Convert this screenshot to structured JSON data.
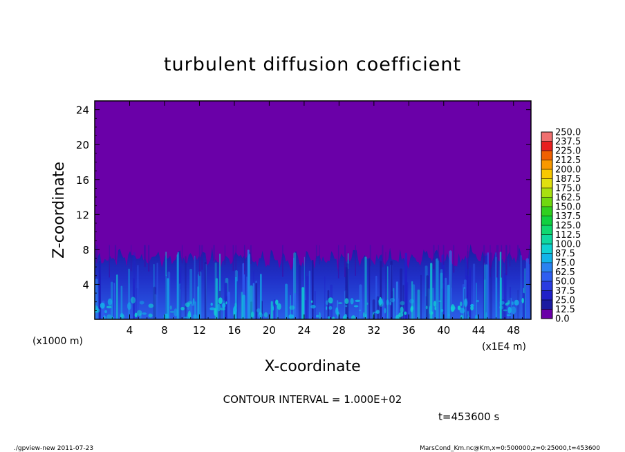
{
  "chart_data": {
    "type": "heatmap",
    "title": "turbulent diffusion coefficient",
    "xlabel": "X-coordinate",
    "ylabel": "Z-coordinate",
    "x_unit": "(x1E4 m)",
    "y_unit": "(x1000 m)",
    "xlim": [
      0,
      50
    ],
    "ylim": [
      0,
      25
    ],
    "x_ticks": [
      4,
      8,
      12,
      16,
      20,
      24,
      28,
      32,
      36,
      40,
      44,
      48
    ],
    "y_ticks": [
      4,
      8,
      12,
      16,
      20,
      24
    ],
    "colorbar": {
      "levels": [
        "0.0",
        "12.5",
        "25.0",
        "37.5",
        "50.0",
        "62.5",
        "75.0",
        "87.5",
        "100.0",
        "112.5",
        "125.0",
        "137.5",
        "150.0",
        "162.5",
        "175.0",
        "187.5",
        "200.0",
        "212.5",
        "225.0",
        "237.5",
        "250.0"
      ],
      "colors": [
        "#6a00a8",
        "#1a1aa0",
        "#2020c8",
        "#2a3ce0",
        "#2e5ef0",
        "#2a82f0",
        "#12b4e8",
        "#10d2d2",
        "#10d8a0",
        "#10d870",
        "#10d040",
        "#30d020",
        "#70d810",
        "#a8e010",
        "#e0e010",
        "#f8c800",
        "#f89800",
        "#f06000",
        "#e82020",
        "#f07070"
      ]
    },
    "field": {
      "boundary_layer_top_approx": 7.5,
      "max_value_visible": 75.0,
      "description_levels": "values 0–75 in lower layer, 0 above"
    }
  },
  "annotations": {
    "contour_interval": "CONTOUR INTERVAL = 1.000E+02",
    "time": "t=453600 s",
    "footer_left": "./gpview-new   2011-07-23",
    "footer_right": "MarsCond_Km.nc@Km,x=0:500000,z=0:25000,t=453600"
  }
}
